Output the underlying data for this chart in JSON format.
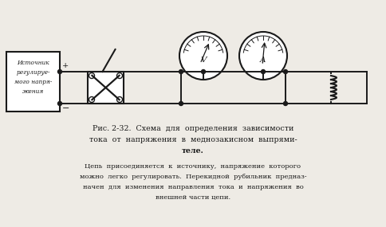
{
  "bg_color": "#eeebe5",
  "line_color": "#1a1a1a",
  "fig_width": 4.84,
  "fig_height": 2.85,
  "dpi": 100,
  "caption_line1": "Рис. 2-32.  Схема  для  определения  зависимости",
  "caption_line2": "тока  от  напряжения  в  меднозакисном  выпрями-",
  "caption_line3": "теле.",
  "body_line1": "Цепь  присоединяется  к  источнику,  напряжение  которого",
  "body_line2": "можно  легко  регулировать.  Перекидной  рубильник  предназ-",
  "body_line3": "начен  для  изменения  направления  тока  и  напряжения  во",
  "body_line4": "внешней части цепи.",
  "source_box_text": [
    "Источник",
    "регулируе-",
    "мого напря-",
    "жения"
  ]
}
